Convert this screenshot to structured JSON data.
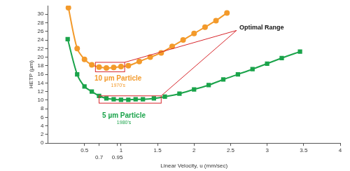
{
  "chart_data": {
    "type": "line",
    "x_label": "Linear Velocity, u (mm/sec)",
    "y_label": "HETP (µm)",
    "xlim": [
      0,
      4
    ],
    "xticks": [
      0.5,
      0.7,
      0.95,
      1,
      1.5,
      2,
      2.5,
      3,
      3.5,
      4
    ],
    "ylim": [
      0,
      32
    ],
    "yticks": [
      0,
      2,
      4,
      6,
      8,
      10,
      12,
      14,
      16,
      18,
      20,
      22,
      24,
      26,
      28,
      30
    ],
    "grid": false,
    "series": [
      {
        "name": "10 µm Particle",
        "era": "1970's",
        "color": "#f39a2b",
        "marker": "circle",
        "x": [
          0.28,
          0.4,
          0.5,
          0.6,
          0.7,
          0.8,
          0.9,
          1.0,
          1.1,
          1.25,
          1.4,
          1.55,
          1.7,
          1.85,
          2.0,
          2.15,
          2.3,
          2.45
        ],
        "values": [
          31.5,
          22,
          19.5,
          18.2,
          17.7,
          17.5,
          17.6,
          17.8,
          18,
          19,
          20,
          21,
          22.5,
          24,
          25.5,
          27,
          28.5,
          30.3
        ]
      },
      {
        "name": "5 µm Particle",
        "era": "1980's",
        "color": "#1aa34a",
        "marker": "square",
        "x": [
          0.27,
          0.4,
          0.5,
          0.6,
          0.7,
          0.8,
          0.9,
          1.0,
          1.1,
          1.2,
          1.3,
          1.45,
          1.6,
          1.8,
          2.0,
          2.2,
          2.4,
          2.6,
          2.8,
          3.0,
          3.2,
          3.45
        ],
        "values": [
          24.2,
          16,
          13.2,
          12,
          11,
          10.4,
          10.2,
          10.1,
          10.1,
          10.2,
          10.2,
          10.4,
          10.8,
          11.5,
          12.5,
          13.5,
          14.8,
          16,
          17.2,
          18.5,
          19.8,
          21.3
        ]
      }
    ],
    "annotations": [
      {
        "text": "Optimal Range"
      }
    ],
    "optimal_ranges": [
      {
        "series": "10 µm Particle",
        "x": [
          0.65,
          1.05
        ],
        "y": [
          16.6,
          18.8
        ]
      },
      {
        "series": "5 µm Particle",
        "x": [
          0.7,
          1.55
        ],
        "y": [
          9.3,
          11
        ]
      }
    ]
  }
}
